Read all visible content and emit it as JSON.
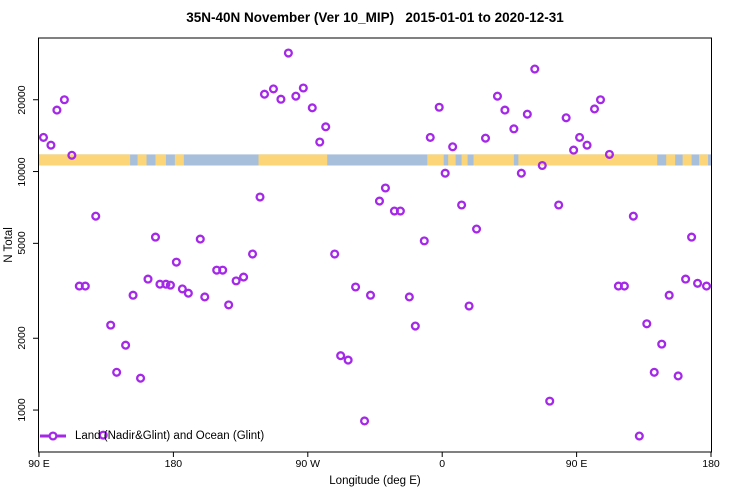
{
  "title": "35N-40N November (Ver 10_MIP)   2015-01-01 to 2020-12-31",
  "legend": {
    "label": "Land (Nadir&Glint) and Ocean (Glint)"
  },
  "colors": {
    "point": "#A428E8",
    "ocean_band": "#A8BFDB",
    "land_band": "#FBD578",
    "frame": "#000000",
    "text": "#000000"
  },
  "axes": {
    "x": {
      "label": "Longitude (deg E)",
      "ticks": [
        {
          "deg": 90,
          "label": "90 E"
        },
        {
          "deg": 180,
          "label": "180"
        },
        {
          "deg": 270,
          "label": "90 W"
        },
        {
          "deg": 360,
          "label": "0"
        },
        {
          "deg": 450,
          "label": "90 E"
        },
        {
          "deg": 540,
          "label": "180"
        }
      ]
    },
    "y": {
      "label": "N Total",
      "ticks": [
        {
          "v": 1000,
          "label": "1000"
        },
        {
          "v": 2000,
          "label": "2000"
        },
        {
          "v": 5000,
          "label": "5000"
        },
        {
          "v": 10000,
          "label": "10000"
        },
        {
          "v": 20000,
          "label": "20000"
        }
      ]
    }
  },
  "chart_data": {
    "type": "scatter",
    "title": "35N-40N November (Ver 10_MIP)   2015-01-01 to 2020-12-31",
    "xlabel": "Longitude (deg E)",
    "ylabel": "N Total",
    "x_axis": {
      "unit": "degrees longitude, unwrapped eastward starting at 90E",
      "range": [
        90,
        540
      ],
      "tick_degrees": [
        90,
        180,
        270,
        360,
        450,
        540
      ],
      "tick_labels": [
        "90 E",
        "180",
        "90 W",
        "0",
        "90 E",
        "180"
      ]
    },
    "y_axis": {
      "scale": "log",
      "range": [
        667,
        36300
      ],
      "ticks": [
        1000,
        2000,
        5000,
        10000,
        20000
      ]
    },
    "legend_position": "bottom-left-inside",
    "grid": false,
    "series": [
      {
        "name": "Land (Nadir&Glint) and Ocean (Glint)",
        "marker": "open-circle",
        "color": "#A428E8",
        "points": [
          [
            107,
            20000
          ],
          [
            102,
            18100
          ],
          [
            93,
            13900
          ],
          [
            98,
            12900
          ],
          [
            112,
            11700
          ],
          [
            257,
            31400
          ],
          [
            247,
            22200
          ],
          [
            241,
            21100
          ],
          [
            252,
            20100
          ],
          [
            262,
            20700
          ],
          [
            267,
            22400
          ],
          [
            273,
            18500
          ],
          [
            282,
            15400
          ],
          [
            278,
            13300
          ],
          [
            358,
            18600
          ],
          [
            352,
            13900
          ],
          [
            367,
            12700
          ],
          [
            389,
            13800
          ],
          [
            362,
            9840
          ],
          [
            422,
            26900
          ],
          [
            397,
            20700
          ],
          [
            402,
            18100
          ],
          [
            417,
            17400
          ],
          [
            408,
            15100
          ],
          [
            443,
            16800
          ],
          [
            462,
            18300
          ],
          [
            466,
            20000
          ],
          [
            452,
            13900
          ],
          [
            457,
            12900
          ],
          [
            448,
            12300
          ],
          [
            472,
            11800
          ],
          [
            427,
            10600
          ],
          [
            413,
            9840
          ],
          [
            128,
            6500
          ],
          [
            168,
            5310
          ],
          [
            198,
            5210
          ],
          [
            182,
            4170
          ],
          [
            233,
            4510
          ],
          [
            209,
            3860
          ],
          [
            213,
            3860
          ],
          [
            222,
            3480
          ],
          [
            227,
            3610
          ],
          [
            163,
            3540
          ],
          [
            171,
            3370
          ],
          [
            175,
            3370
          ],
          [
            178,
            3340
          ],
          [
            186,
            3220
          ],
          [
            190,
            3090
          ],
          [
            201,
            2980
          ],
          [
            153,
            3030
          ],
          [
            117,
            3310
          ],
          [
            121,
            3310
          ],
          [
            217,
            2760
          ],
          [
            238,
            7820
          ],
          [
            322,
            8530
          ],
          [
            318,
            7520
          ],
          [
            328,
            6830
          ],
          [
            332,
            6830
          ],
          [
            373,
            7240
          ],
          [
            383,
            5740
          ],
          [
            348,
            5120
          ],
          [
            288,
            4510
          ],
          [
            302,
            3280
          ],
          [
            312,
            3030
          ],
          [
            338,
            2980
          ],
          [
            378,
            2730
          ],
          [
            438,
            7240
          ],
          [
            488,
            6500
          ],
          [
            527,
            5310
          ],
          [
            478,
            3310
          ],
          [
            482,
            3310
          ],
          [
            523,
            3540
          ],
          [
            531,
            3400
          ],
          [
            537,
            3310
          ],
          [
            512,
            3030
          ],
          [
            138,
            2270
          ],
          [
            148,
            1870
          ],
          [
            142,
            1440
          ],
          [
            158,
            1360
          ],
          [
            133,
            785
          ],
          [
            342,
            2250
          ],
          [
            292,
            1690
          ],
          [
            297,
            1620
          ],
          [
            308,
            900
          ],
          [
            432,
            1090
          ],
          [
            497,
            2300
          ],
          [
            507,
            1890
          ],
          [
            502,
            1440
          ],
          [
            518,
            1390
          ],
          [
            492,
            778
          ]
        ]
      }
    ],
    "land_ocean_band": {
      "description": "horizontal map strip showing land (orange) vs ocean (blue) by longitude",
      "value_top": 11800,
      "value_bottom": 10600,
      "ocean_extent": [
        90,
        540
      ],
      "land_segments": [
        [
          90,
          151
        ],
        [
          156,
          162
        ],
        [
          168,
          175
        ],
        [
          181,
          187
        ],
        [
          237,
          283
        ],
        [
          350,
          361
        ],
        [
          364,
          369
        ],
        [
          373,
          377
        ],
        [
          381,
          504
        ],
        [
          510,
          516
        ],
        [
          521,
          527
        ],
        [
          532,
          538
        ]
      ],
      "ocean_patches": [
        [
          408,
          411
        ]
      ]
    }
  }
}
